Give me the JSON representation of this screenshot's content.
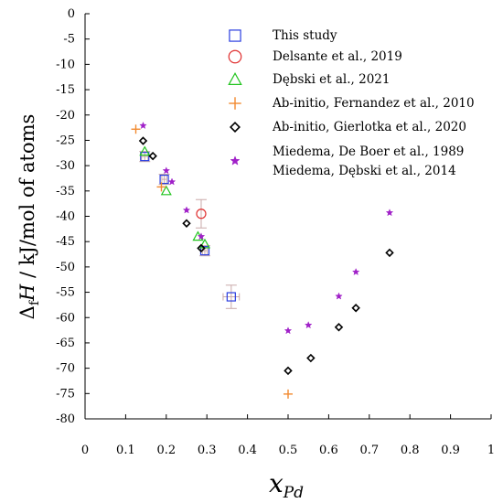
{
  "chart_data": {
    "type": "scatter",
    "title": "",
    "xlabel_main": "x",
    "xlabel_sub": "Pd",
    "ylabel_prefix": "Δ",
    "ylabel_sub": "f",
    "ylabel_var": "H",
    "ylabel_rest": " / kJ/mol of atoms",
    "xlim": [
      0,
      1
    ],
    "ylim": [
      -80,
      0
    ],
    "xticks": [
      0,
      0.1,
      0.2,
      0.3,
      0.4,
      0.5,
      0.6,
      0.7,
      0.8,
      0.9,
      1
    ],
    "xtick_labels": [
      "0",
      "0.1",
      "0.2",
      "0.3",
      "0.4",
      "0.5",
      "0.6",
      "0.7",
      "0.8",
      "0.9",
      "1"
    ],
    "yticks": [
      0,
      -5,
      -10,
      -15,
      -20,
      -25,
      -30,
      -35,
      -40,
      -45,
      -50,
      -55,
      -60,
      -65,
      -70,
      -75,
      -80
    ],
    "ytick_labels": [
      "0",
      "-5",
      "-10",
      "-15",
      "-20",
      "-25",
      "-30",
      "-35",
      "-40",
      "-45",
      "-50",
      "-55",
      "-60",
      "-65",
      "-70",
      "-75",
      "-80"
    ],
    "grid": false,
    "legend_position": "top-right",
    "series": [
      {
        "name": "This study",
        "marker": "square",
        "color": "#2a3de0",
        "points": [
          {
            "x": 0.147,
            "y": -28.2,
            "xerr": 0.008,
            "yerr": 1.0
          },
          {
            "x": 0.195,
            "y": -32.7,
            "xerr": 0.006,
            "yerr": 1.0
          },
          {
            "x": 0.295,
            "y": -46.8,
            "xerr": 0.006,
            "yerr": 1.0
          },
          {
            "x": 0.36,
            "y": -55.9,
            "xerr": 0.02,
            "yerr": 2.3
          }
        ]
      },
      {
        "name": "Delsante et al., 2019",
        "marker": "circle",
        "color": "#e03030",
        "points": [
          {
            "x": 0.286,
            "y": -39.5,
            "xerr": 0.0,
            "yerr": 2.8
          }
        ]
      },
      {
        "name": "Dębski et al., 2021",
        "marker": "triangle",
        "color": "#22c41f",
        "points": [
          {
            "x": 0.147,
            "y": -27.2
          },
          {
            "x": 0.2,
            "y": -35.0
          },
          {
            "x": 0.278,
            "y": -44.0
          },
          {
            "x": 0.295,
            "y": -45.5
          }
        ]
      },
      {
        "name": "Ab-initio, Fernandez et al., 2010",
        "marker": "plus",
        "color": "#f28a30",
        "points": [
          {
            "x": 0.125,
            "y": -22.8
          },
          {
            "x": 0.188,
            "y": -34.2
          },
          {
            "x": 0.5,
            "y": -75.1
          }
        ]
      },
      {
        "name": "Ab-initio, Gierlotka et al., 2020",
        "marker": "diamond",
        "color": "#000000",
        "points": [
          {
            "x": 0.143,
            "y": -25.1
          },
          {
            "x": 0.167,
            "y": -28.1
          },
          {
            "x": 0.25,
            "y": -41.4
          },
          {
            "x": 0.286,
            "y": -46.3
          },
          {
            "x": 0.5,
            "y": -70.5
          },
          {
            "x": 0.556,
            "y": -68.0
          },
          {
            "x": 0.625,
            "y": -61.9
          },
          {
            "x": 0.667,
            "y": -58.1
          },
          {
            "x": 0.75,
            "y": -47.2
          }
        ]
      },
      {
        "name": "Miedema, De Boer et al., 1989",
        "marker": "star",
        "color": "#a020c8",
        "points": [
          {
            "x": 0.143,
            "y": -22.1
          },
          {
            "x": 0.2,
            "y": -31.0
          },
          {
            "x": 0.214,
            "y": -33.2
          },
          {
            "x": 0.25,
            "y": -38.8
          },
          {
            "x": 0.286,
            "y": -44.0
          },
          {
            "x": 0.5,
            "y": -62.6
          },
          {
            "x": 0.55,
            "y": -61.5
          },
          {
            "x": 0.625,
            "y": -55.8
          },
          {
            "x": 0.667,
            "y": -51.0
          },
          {
            "x": 0.75,
            "y": -39.3
          }
        ]
      },
      {
        "name": "Miedema, Dębski et al., 2014",
        "marker": "none",
        "color": "#a020c8",
        "points": []
      }
    ]
  }
}
